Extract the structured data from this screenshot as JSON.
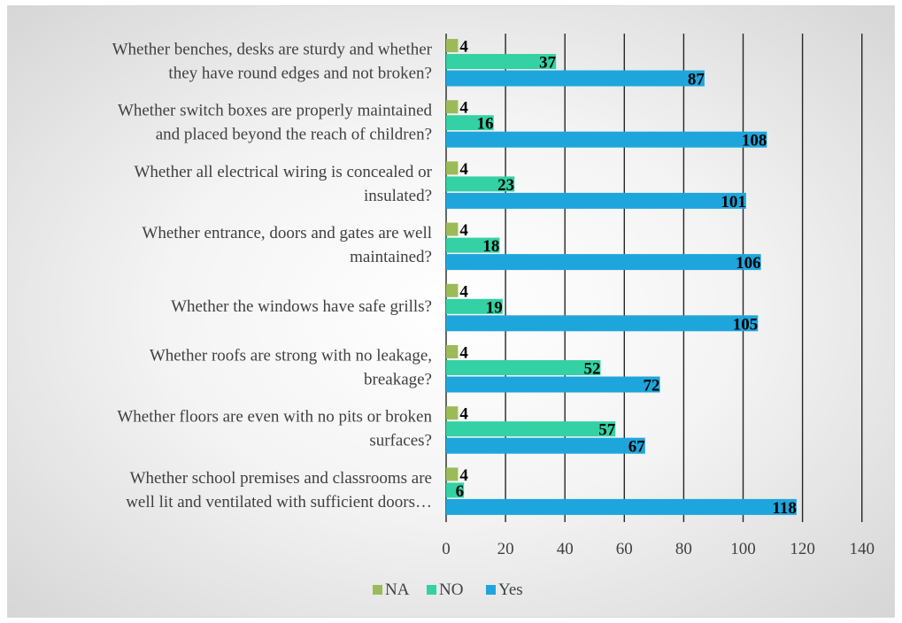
{
  "chart_data": {
    "type": "bar",
    "orientation": "horizontal",
    "title": "",
    "xlabel": "",
    "ylabel": "",
    "xlim": [
      0,
      140
    ],
    "x_ticks": [
      0,
      20,
      40,
      60,
      80,
      100,
      120,
      140
    ],
    "grid": "vertical",
    "legend_position": "bottom",
    "categories": [
      [
        "Whether benches, desks are sturdy and whether",
        "they have round edges and not broken?"
      ],
      [
        "Whether switch boxes are properly maintained",
        "and placed beyond the reach of children?"
      ],
      [
        "Whether all electrical wiring is concealed or",
        "insulated?"
      ],
      [
        "Whether entrance, doors and gates are well",
        "maintained?"
      ],
      [
        "Whether the windows have safe grills?"
      ],
      [
        "Whether roofs are strong with no leakage,",
        "breakage?"
      ],
      [
        "Whether floors are even with no pits or broken",
        "surfaces?"
      ],
      [
        "Whether school premises and classrooms are",
        "well lit and ventilated with sufficient doors…"
      ]
    ],
    "series": [
      {
        "name": "NA",
        "color": "#9bbb59",
        "values": [
          4,
          4,
          4,
          4,
          4,
          4,
          4,
          4
        ]
      },
      {
        "name": "NO",
        "color": "#33d1a4",
        "values": [
          37,
          16,
          23,
          18,
          19,
          52,
          57,
          6
        ]
      },
      {
        "name": "Yes",
        "color": "#1ea6dc",
        "values": [
          87,
          108,
          101,
          106,
          105,
          72,
          67,
          118
        ]
      }
    ]
  }
}
